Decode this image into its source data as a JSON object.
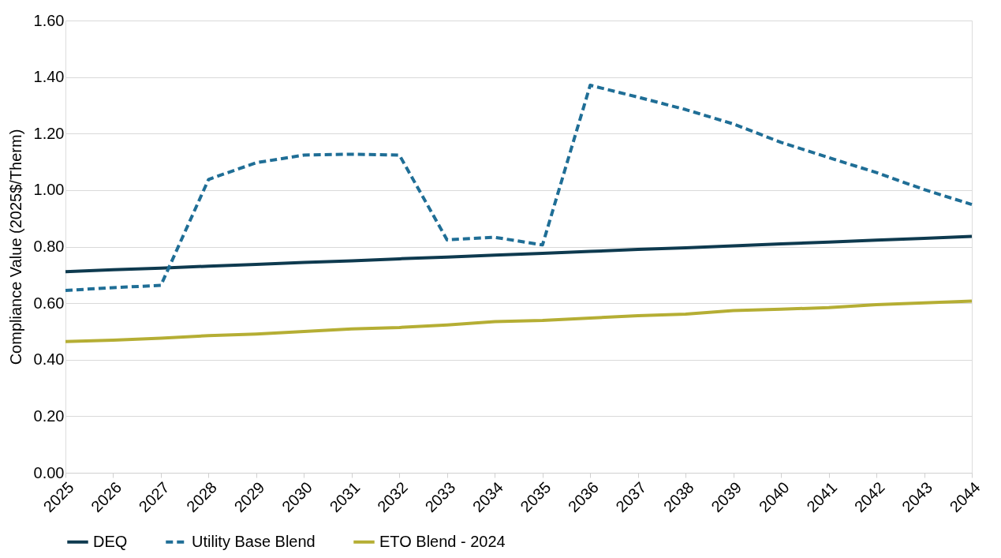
{
  "chart_data": {
    "type": "line",
    "ylabel": "Compliance Value (2025$/Therm)",
    "categories": [
      "2025",
      "2026",
      "2027",
      "2028",
      "2029",
      "2030",
      "2031",
      "2032",
      "2033",
      "2034",
      "2035",
      "2036",
      "2037",
      "2038",
      "2039",
      "2040",
      "2041",
      "2042",
      "2043",
      "2044"
    ],
    "series": [
      {
        "name": "DEQ",
        "color": "#0e3a4f",
        "line_style": "solid",
        "values": [
          0.711,
          0.718,
          0.724,
          0.731,
          0.737,
          0.744,
          0.75,
          0.757,
          0.763,
          0.77,
          0.776,
          0.783,
          0.79,
          0.796,
          0.803,
          0.81,
          0.816,
          0.823,
          0.829,
          0.836
        ]
      },
      {
        "name": "Utility Base Blend",
        "color": "#1f6e96",
        "line_style": "dashed",
        "values": [
          0.645,
          0.655,
          0.663,
          1.038,
          1.097,
          1.124,
          1.127,
          1.124,
          0.824,
          0.833,
          0.806,
          1.371,
          1.329,
          1.285,
          1.234,
          1.169,
          1.115,
          1.062,
          1.002,
          0.949
        ]
      },
      {
        "name": "ETO Blend - 2024",
        "color": "#b5ae34",
        "line_style": "solid",
        "values": [
          0.464,
          0.469,
          0.476,
          0.485,
          0.491,
          0.5,
          0.509,
          0.514,
          0.523,
          0.535,
          0.539,
          0.547,
          0.556,
          0.561,
          0.574,
          0.579,
          0.584,
          0.595,
          0.601,
          0.607
        ]
      }
    ],
    "ylim": [
      0,
      1.6
    ],
    "yticks": [
      {
        "value": 0,
        "label": "0.00"
      },
      {
        "value": 0.2,
        "label": "0.20"
      },
      {
        "value": 0.4,
        "label": "0.40"
      },
      {
        "value": 0.6,
        "label": "0.60"
      },
      {
        "value": 0.8,
        "label": "0.80"
      },
      {
        "value": 1.0,
        "label": "1.00"
      },
      {
        "value": 1.2,
        "label": "1.20"
      },
      {
        "value": 1.4,
        "label": "1.40"
      },
      {
        "value": 1.6,
        "label": "1.60"
      }
    ],
    "grid": "y",
    "legend": "bottom",
    "marker": "none"
  }
}
